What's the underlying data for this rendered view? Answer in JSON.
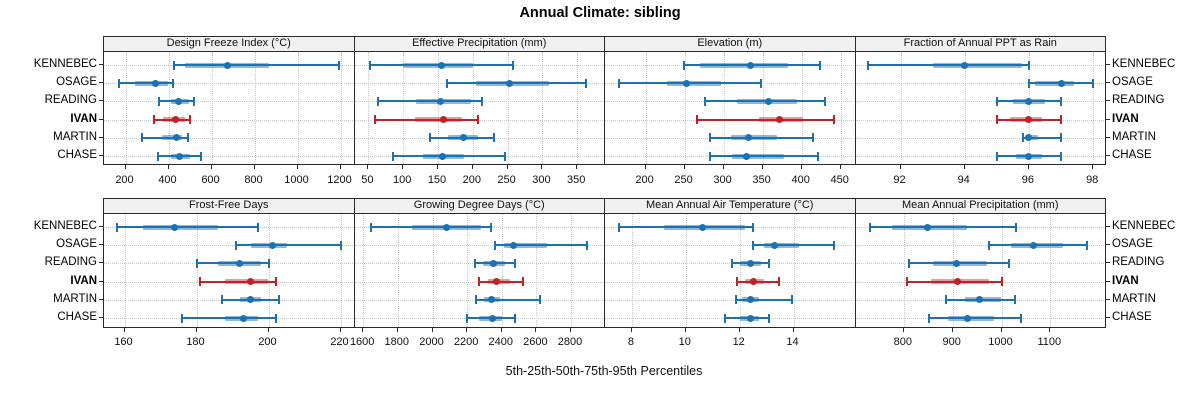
{
  "chart_data": {
    "type": "dotplot-percentiles",
    "title": "Annual Climate: sibling",
    "xlabel": "5th-25th-50th-75th-95th Percentiles",
    "percentiles": [
      "5th",
      "25th",
      "50th",
      "75th",
      "95th"
    ],
    "stations": [
      "KENNEBEC",
      "OSAGE",
      "READING",
      "IVAN",
      "MARTIN",
      "CHASE"
    ],
    "highlight_station": "IVAN",
    "legend_position": "none",
    "grid": "dotted",
    "colors": {
      "series_dark": "#1b72b2",
      "series_band": "rgba(27,114,178,0.5)",
      "highlight_dark": "#be2328",
      "highlight_band": "rgba(190,35,40,0.45)",
      "grid": "#c9c9c9",
      "strip_bg": "#f0f0f0",
      "border": "#2a2a2a"
    },
    "panels": [
      {
        "label": "Design Freeze Index (°C)",
        "xlim": [
          100,
          1265
        ],
        "ticks": [
          200,
          400,
          600,
          800,
          1000,
          1200
        ],
        "series": [
          [
            425,
            475,
            675,
            870,
            1195
          ],
          [
            170,
            245,
            340,
            400,
            420
          ],
          [
            355,
            410,
            445,
            495,
            520
          ],
          [
            330,
            375,
            430,
            475,
            500
          ],
          [
            275,
            370,
            435,
            465,
            490
          ],
          [
            350,
            410,
            450,
            500,
            550
          ]
        ]
      },
      {
        "label": "Effective Precipitation (mm)",
        "xlim": [
          30,
          390
        ],
        "ticks": [
          50,
          100,
          150,
          200,
          250,
          300,
          350
        ],
        "series": [
          [
            52,
            100,
            155,
            200,
            258
          ],
          [
            163,
            205,
            252,
            310,
            363
          ],
          [
            63,
            118,
            153,
            197,
            213
          ],
          [
            60,
            117,
            158,
            185,
            207
          ],
          [
            138,
            165,
            186,
            207,
            231
          ],
          [
            85,
            128,
            156,
            188,
            246
          ]
        ]
      },
      {
        "label": "Elevation (m)",
        "xlim": [
          148,
          469
        ],
        "ticks": [
          200,
          250,
          300,
          350,
          400,
          450
        ],
        "series": [
          [
            249,
            270,
            335,
            383,
            424
          ],
          [
            166,
            228,
            253,
            297,
            348
          ],
          [
            276,
            317,
            358,
            394,
            430
          ],
          [
            266,
            345,
            372,
            402,
            442
          ],
          [
            283,
            310,
            332,
            369,
            414
          ],
          [
            283,
            311,
            329,
            377,
            421
          ]
        ]
      },
      {
        "label": "Fraction of Annual PPT as Rain",
        "xlim": [
          90.6,
          98.4
        ],
        "ticks": [
          92,
          94,
          96,
          98
        ],
        "series": [
          [
            91,
            93,
            94,
            95.8,
            96
          ],
          [
            96,
            96.2,
            97,
            97.4,
            98
          ],
          [
            95,
            95.5,
            96,
            96.5,
            97
          ],
          [
            95,
            95.4,
            96,
            96.4,
            97
          ],
          [
            95.8,
            96,
            96,
            96.3,
            97
          ],
          [
            95,
            95.6,
            96,
            96.4,
            97
          ]
        ]
      },
      {
        "label": "Frost-Free Days",
        "xlim": [
          154.3,
          223.9
        ],
        "ticks": [
          160,
          180,
          200,
          220
        ],
        "series": [
          [
            158,
            165,
            174,
            186,
            197
          ],
          [
            191,
            195,
            201,
            205,
            220
          ],
          [
            180,
            186,
            192,
            198,
            200
          ],
          [
            181,
            188,
            195,
            200,
            202
          ],
          [
            187,
            192,
            195,
            198,
            203
          ],
          [
            176,
            188,
            193,
            197,
            202
          ]
        ]
      },
      {
        "label": "Growing Degree Days (°C)",
        "xlim": [
          1550,
          2996
        ],
        "ticks": [
          1600,
          1800,
          2000,
          2200,
          2400,
          2600,
          2800
        ],
        "series": [
          [
            1645,
            1880,
            2080,
            2280,
            2340
          ],
          [
            2360,
            2410,
            2470,
            2660,
            2890
          ],
          [
            2245,
            2290,
            2350,
            2420,
            2475
          ],
          [
            2270,
            2320,
            2370,
            2450,
            2525
          ],
          [
            2250,
            2295,
            2340,
            2390,
            2620
          ],
          [
            2200,
            2270,
            2345,
            2400,
            2475
          ]
        ]
      },
      {
        "label": "Mean Annual Air Temperature (°C)",
        "xlim": [
          7.0,
          16.3
        ],
        "ticks": [
          8,
          10,
          12,
          14
        ],
        "series": [
          [
            7.5,
            9.2,
            10.6,
            12.2,
            12.5
          ],
          [
            12.5,
            12.9,
            13.3,
            14.2,
            15.5
          ],
          [
            11.7,
            12.0,
            12.4,
            12.8,
            13.1
          ],
          [
            11.9,
            12.2,
            12.5,
            12.9,
            13.45
          ],
          [
            11.85,
            12.1,
            12.4,
            12.7,
            13.95
          ],
          [
            11.45,
            12.0,
            12.4,
            12.7,
            13.1
          ]
        ]
      },
      {
        "label": "Mean Annual Precipitation (mm)",
        "xlim": [
          701,
          1214
        ],
        "ticks": [
          800,
          900,
          1000,
          1100
        ],
        "series": [
          [
            730,
            775,
            848,
            930,
            1030
          ],
          [
            975,
            1020,
            1065,
            1125,
            1175
          ],
          [
            810,
            860,
            907,
            970,
            1015
          ],
          [
            806,
            855,
            910,
            975,
            1000
          ],
          [
            887,
            925,
            955,
            1000,
            1028
          ],
          [
            852,
            890,
            930,
            985,
            1039
          ]
        ]
      }
    ]
  }
}
